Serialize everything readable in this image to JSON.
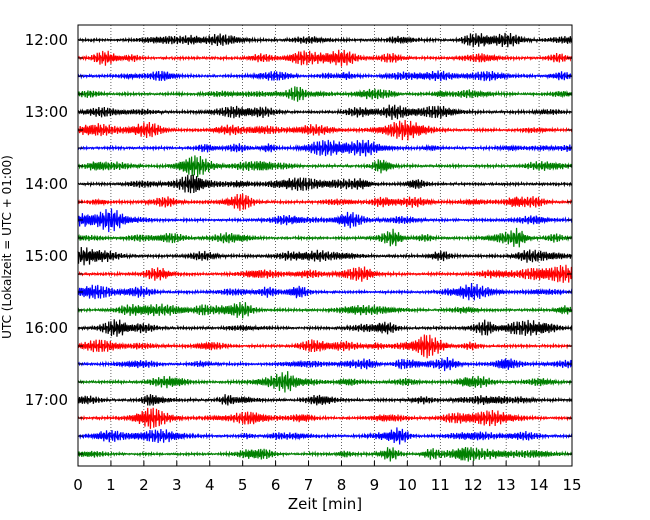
{
  "chart_data": {
    "type": "line",
    "title": "",
    "xlabel": "Zeit  [min]",
    "ylabel": "UTC (Lokalzeit = UTC + 01:00)",
    "xlim": [
      0,
      15
    ],
    "x_ticks": [
      "0",
      "1",
      "2",
      "3",
      "4",
      "5",
      "6",
      "7",
      "8",
      "9",
      "10",
      "11",
      "12",
      "13",
      "14",
      "15"
    ],
    "y_tick_labels": [
      "12:00",
      "13:00",
      "14:00",
      "15:00",
      "16:00",
      "17:00"
    ],
    "y_range": [
      "12:00",
      "17:55"
    ],
    "trace_interval_minutes": 15,
    "trace_count": 24,
    "trace_start_times": [
      "12:00",
      "12:15",
      "12:30",
      "12:45",
      "13:00",
      "13:15",
      "13:30",
      "13:45",
      "14:00",
      "14:15",
      "14:30",
      "14:45",
      "15:00",
      "15:15",
      "15:30",
      "15:45",
      "16:00",
      "16:15",
      "16:30",
      "16:45",
      "17:00",
      "17:15",
      "17:30",
      "17:45"
    ],
    "trace_color_cycle": [
      "#000000",
      "#ff0000",
      "#0000ff",
      "#008000"
    ],
    "grid": "vertical dotted lines at each minute",
    "legend": "none"
  }
}
